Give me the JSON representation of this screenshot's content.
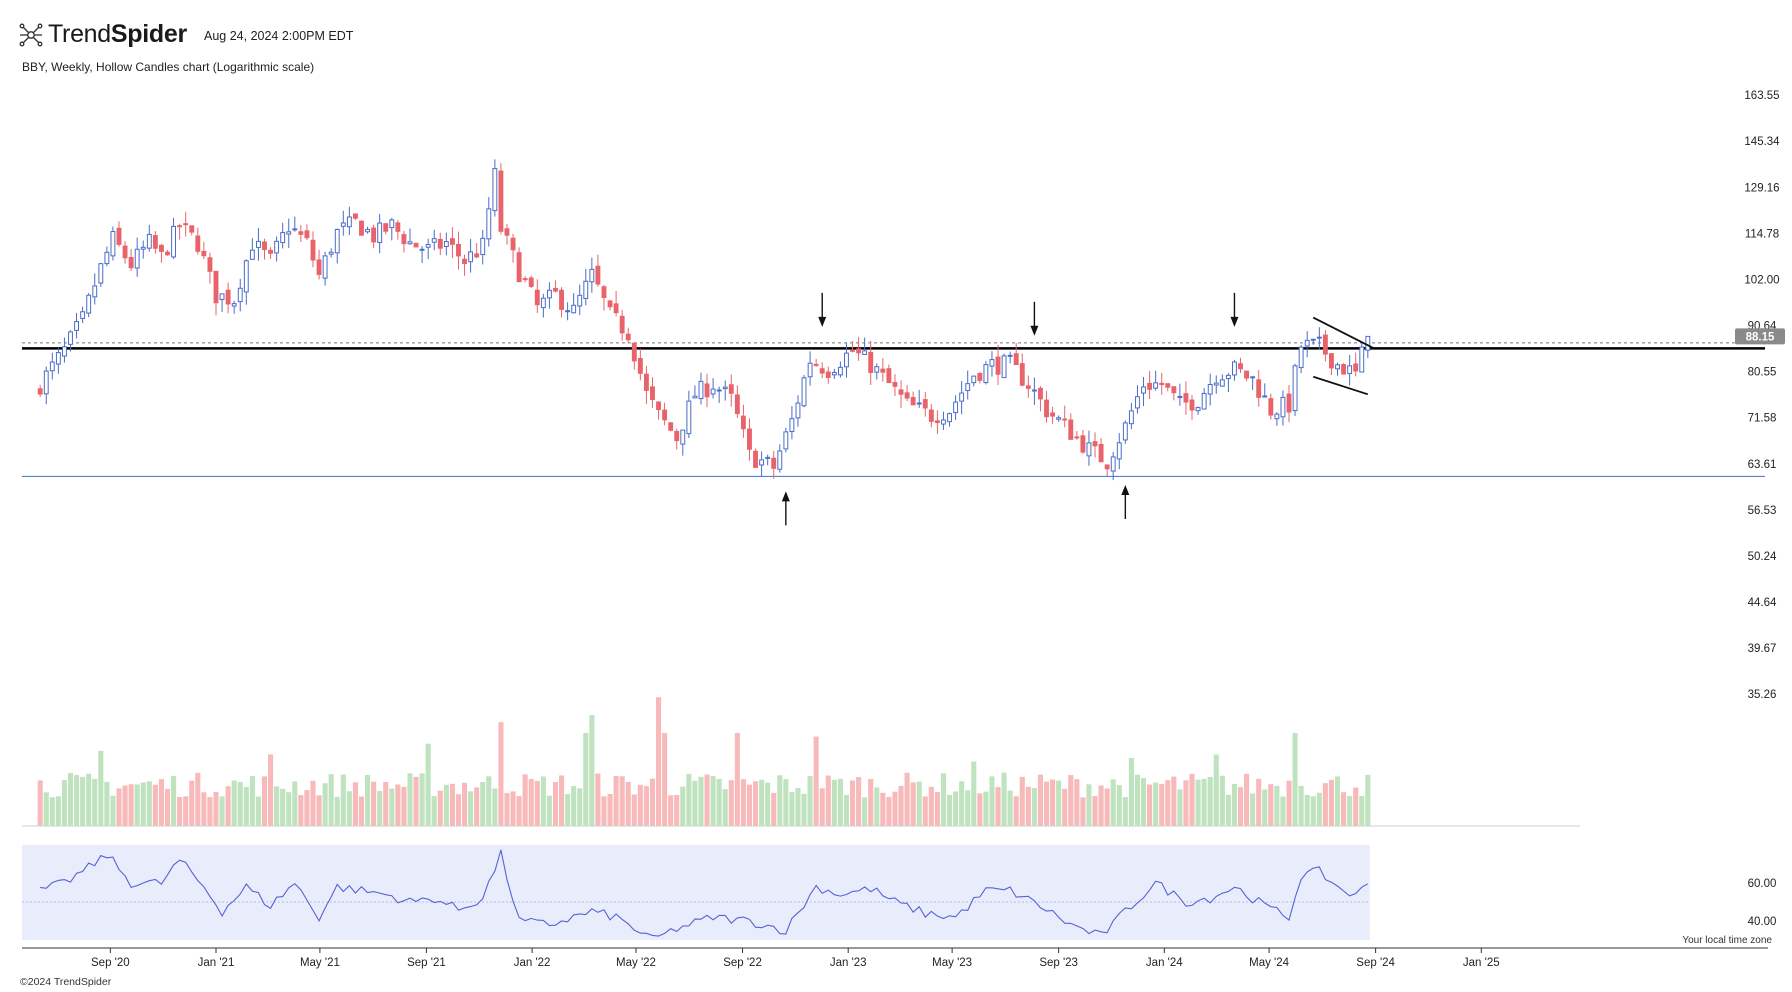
{
  "header": {
    "brand_regular": "Trend",
    "brand_bold": "Spider",
    "timestamp": "Aug 24, 2024 2:00PM EDT",
    "subtitle": "BBY, Weekly, Hollow Candles chart (Logarithmic scale)"
  },
  "footer": {
    "copyright": "©2024 TrendSpider",
    "timezone_note": "Your local time zone"
  },
  "colors": {
    "up": "#4a6cc8",
    "down": "#e9636a",
    "vol_up": "#bfe3bf",
    "vol_down": "#f7b9b9",
    "rsi_line": "#5563d6",
    "rsi_band": "#e9ecfb",
    "support_line": "#3b6fc9",
    "resistance_line": "#000000"
  },
  "chart_data": {
    "type": "candlestick",
    "symbol": "BBY",
    "interval": "Weekly",
    "scale": "log",
    "price_axis_ticks": [
      163.55,
      145.34,
      129.16,
      114.78,
      102.0,
      90.64,
      80.55,
      71.58,
      63.61,
      56.53,
      50.24,
      44.64,
      39.67,
      35.26
    ],
    "ylim": [
      33,
      170
    ],
    "time_axis_labels": [
      "Sep '20",
      "Jan '21",
      "May '21",
      "Sep '21",
      "Jan '22",
      "May '22",
      "Sep '22",
      "Jan '23",
      "May '23",
      "Sep '23",
      "Jan '24",
      "May '24",
      "Sep '24",
      "Jan '25"
    ],
    "start_date": "2020-06-12",
    "end_date": "2024-08-23",
    "last_price": "88.15",
    "close_anchors": [
      [
        "2020-06-12",
        78
      ],
      [
        "2020-07-10",
        85
      ],
      [
        "2020-07-31",
        92
      ],
      [
        "2020-08-21",
        105
      ],
      [
        "2020-09-04",
        113
      ],
      [
        "2020-09-25",
        106
      ],
      [
        "2020-10-16",
        112
      ],
      [
        "2020-10-30",
        108
      ],
      [
        "2020-11-20",
        117
      ],
      [
        "2020-12-11",
        112
      ],
      [
        "2020-12-31",
        98
      ],
      [
        "2021-01-22",
        97
      ],
      [
        "2021-02-12",
        112
      ],
      [
        "2021-03-05",
        107
      ],
      [
        "2021-03-26",
        117
      ],
      [
        "2021-04-16",
        112
      ],
      [
        "2021-04-30",
        103
      ],
      [
        "2021-05-21",
        115
      ],
      [
        "2021-06-11",
        118
      ],
      [
        "2021-07-02",
        114
      ],
      [
        "2021-07-23",
        117
      ],
      [
        "2021-08-13",
        112
      ],
      [
        "2021-09-03",
        110
      ],
      [
        "2021-09-24",
        112
      ],
      [
        "2021-10-15",
        107
      ],
      [
        "2021-11-05",
        111
      ],
      [
        "2021-11-19",
        133
      ],
      [
        "2021-11-26",
        116
      ],
      [
        "2021-12-17",
        104
      ],
      [
        "2022-01-07",
        95
      ],
      [
        "2022-01-28",
        98
      ],
      [
        "2022-02-18",
        94
      ],
      [
        "2022-03-11",
        103
      ],
      [
        "2022-04-01",
        93
      ],
      [
        "2022-04-22",
        89
      ],
      [
        "2022-05-13",
        76
      ],
      [
        "2022-05-27",
        72
      ],
      [
        "2022-06-17",
        68
      ],
      [
        "2022-07-08",
        76
      ],
      [
        "2022-07-29",
        78
      ],
      [
        "2022-08-19",
        75
      ],
      [
        "2022-09-09",
        65
      ],
      [
        "2022-10-07",
        63
      ],
      [
        "2022-10-28",
        71
      ],
      [
        "2022-11-18",
        83
      ],
      [
        "2022-12-09",
        81
      ],
      [
        "2023-01-06",
        85
      ],
      [
        "2023-01-27",
        82
      ],
      [
        "2023-02-17",
        78
      ],
      [
        "2023-03-10",
        74
      ],
      [
        "2023-04-07",
        72
      ],
      [
        "2023-04-28",
        73
      ],
      [
        "2023-05-26",
        80
      ],
      [
        "2023-06-16",
        82
      ],
      [
        "2023-07-07",
        82
      ],
      [
        "2023-07-28",
        78
      ],
      [
        "2023-08-18",
        73
      ],
      [
        "2023-09-15",
        69
      ],
      [
        "2023-10-06",
        66
      ],
      [
        "2023-10-27",
        64
      ],
      [
        "2023-11-17",
        70
      ],
      [
        "2023-12-08",
        78
      ],
      [
        "2023-12-29",
        78
      ],
      [
        "2024-01-19",
        74
      ],
      [
        "2024-02-09",
        75
      ],
      [
        "2024-03-01",
        80
      ],
      [
        "2024-03-22",
        81
      ],
      [
        "2024-04-12",
        79
      ],
      [
        "2024-05-03",
        73
      ],
      [
        "2024-05-24",
        74
      ],
      [
        "2024-06-07",
        86
      ],
      [
        "2024-06-28",
        86
      ],
      [
        "2024-07-19",
        82
      ],
      [
        "2024-08-09",
        80
      ],
      [
        "2024-08-23",
        88.15
      ]
    ],
    "support_level": 61.6,
    "resistance_level": 85.5,
    "prior_close_dashed": 86.7,
    "arrows": [
      {
        "date": "2022-10-21",
        "price": 60.5,
        "dir": "up"
      },
      {
        "date": "2022-12-02",
        "price": 88.5,
        "dir": "down"
      },
      {
        "date": "2023-08-04",
        "price": 86.5,
        "dir": "down"
      },
      {
        "date": "2023-11-17",
        "price": 61.5,
        "dir": "up"
      },
      {
        "date": "2024-03-22",
        "price": 88.5,
        "dir": "down"
      }
    ],
    "pennant": {
      "upper": [
        [
          "2024-06-21",
          92.5
        ],
        [
          "2024-08-30",
          85.5
        ]
      ],
      "lower": [
        [
          "2024-06-21",
          79.5
        ],
        [
          "2024-08-23",
          76.0
        ]
      ]
    },
    "rsi": {
      "ticks": [
        60.0,
        40.0
      ],
      "range": [
        30,
        80
      ],
      "anchors": [
        [
          "2020-06-12",
          56
        ],
        [
          "2020-07-10",
          60
        ],
        [
          "2020-08-07",
          68
        ],
        [
          "2020-08-28",
          75
        ],
        [
          "2020-09-25",
          60
        ],
        [
          "2020-10-30",
          60
        ],
        [
          "2020-11-20",
          72
        ],
        [
          "2020-12-18",
          58
        ],
        [
          "2021-01-08",
          45
        ],
        [
          "2021-02-05",
          58
        ],
        [
          "2021-03-05",
          48
        ],
        [
          "2021-04-02",
          60
        ],
        [
          "2021-04-30",
          42
        ],
        [
          "2021-05-21",
          58
        ],
        [
          "2021-06-18",
          56
        ],
        [
          "2021-07-16",
          54
        ],
        [
          "2021-08-13",
          50
        ],
        [
          "2021-09-10",
          52
        ],
        [
          "2021-10-08",
          46
        ],
        [
          "2021-11-05",
          52
        ],
        [
          "2021-11-26",
          75
        ],
        [
          "2021-12-17",
          40
        ],
        [
          "2022-01-21",
          38
        ],
        [
          "2022-03-11",
          45
        ],
        [
          "2022-04-08",
          42
        ],
        [
          "2022-05-20",
          30
        ],
        [
          "2022-06-17",
          36
        ],
        [
          "2022-07-29",
          42
        ],
        [
          "2022-09-09",
          40
        ],
        [
          "2022-10-21",
          35
        ],
        [
          "2022-11-25",
          58
        ],
        [
          "2022-12-23",
          54
        ],
        [
          "2023-01-27",
          57
        ],
        [
          "2023-02-24",
          50
        ],
        [
          "2023-03-31",
          44
        ],
        [
          "2023-05-05",
          42
        ],
        [
          "2023-06-09",
          56
        ],
        [
          "2023-07-07",
          56
        ],
        [
          "2023-08-11",
          48
        ],
        [
          "2023-09-15",
          38
        ],
        [
          "2023-10-20",
          32
        ],
        [
          "2023-11-17",
          45
        ],
        [
          "2023-12-22",
          60
        ],
        [
          "2024-01-26",
          50
        ],
        [
          "2024-02-23",
          52
        ],
        [
          "2024-03-22",
          58
        ],
        [
          "2024-04-26",
          48
        ],
        [
          "2024-05-24",
          42
        ],
        [
          "2024-06-07",
          64
        ],
        [
          "2024-06-28",
          66
        ],
        [
          "2024-07-19",
          58
        ],
        [
          "2024-08-09",
          53
        ],
        [
          "2024-08-23",
          60
        ]
      ]
    },
    "volume": {
      "spikes": [
        [
          "2020-08-21",
          2.1
        ],
        [
          "2021-03-05",
          2.0
        ],
        [
          "2021-09-03",
          2.3
        ],
        [
          "2021-11-26",
          2.9
        ],
        [
          "2022-03-04",
          2.6
        ],
        [
          "2022-03-11",
          3.1
        ],
        [
          "2022-05-27",
          3.6
        ],
        [
          "2022-06-03",
          2.6
        ],
        [
          "2022-08-26",
          2.6
        ],
        [
          "2022-11-25",
          2.5
        ],
        [
          "2023-05-26",
          1.8
        ],
        [
          "2023-11-24",
          1.9
        ],
        [
          "2024-03-01",
          2.0
        ],
        [
          "2024-05-31",
          2.6
        ]
      ]
    }
  }
}
